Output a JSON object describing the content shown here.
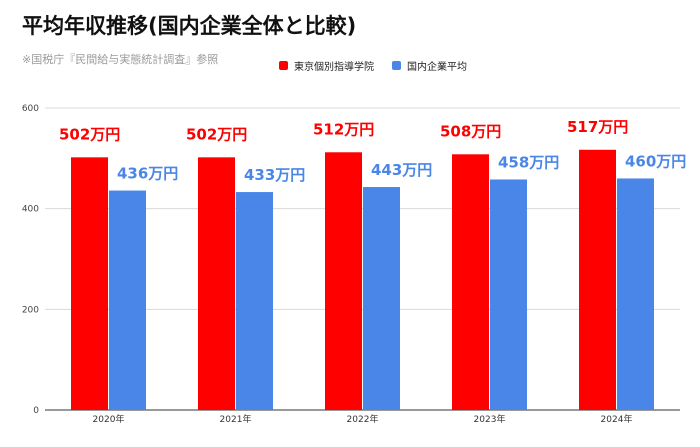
{
  "chart_data": {
    "type": "bar",
    "title": "平均年収推移(国内企業全体と比較)",
    "subtitle": "※国税庁『民間給与実態統計調査』参照",
    "categories": [
      "2020年",
      "2021年",
      "2022年",
      "2023年",
      "2024年"
    ],
    "series": [
      {
        "name": "東京個別指導学院",
        "color": "#ff0000",
        "label_color": "#ff0000",
        "values": [
          502,
          502,
          512,
          508,
          517
        ],
        "data_labels": [
          "502万円",
          "502万円",
          "512万円",
          "508万円",
          "517万円"
        ]
      },
      {
        "name": "国内企業平均",
        "color": "#4a86e8",
        "label_color": "#4a86e8",
        "values": [
          436,
          433,
          443,
          458,
          460
        ],
        "data_labels": [
          "436万円",
          "433万円",
          "443万円",
          "458万円",
          "460万円"
        ]
      }
    ],
    "y_ticks": [
      0,
      200,
      400,
      600
    ],
    "ylim": [
      0,
      600
    ],
    "grid": true,
    "legend_position": "top"
  }
}
